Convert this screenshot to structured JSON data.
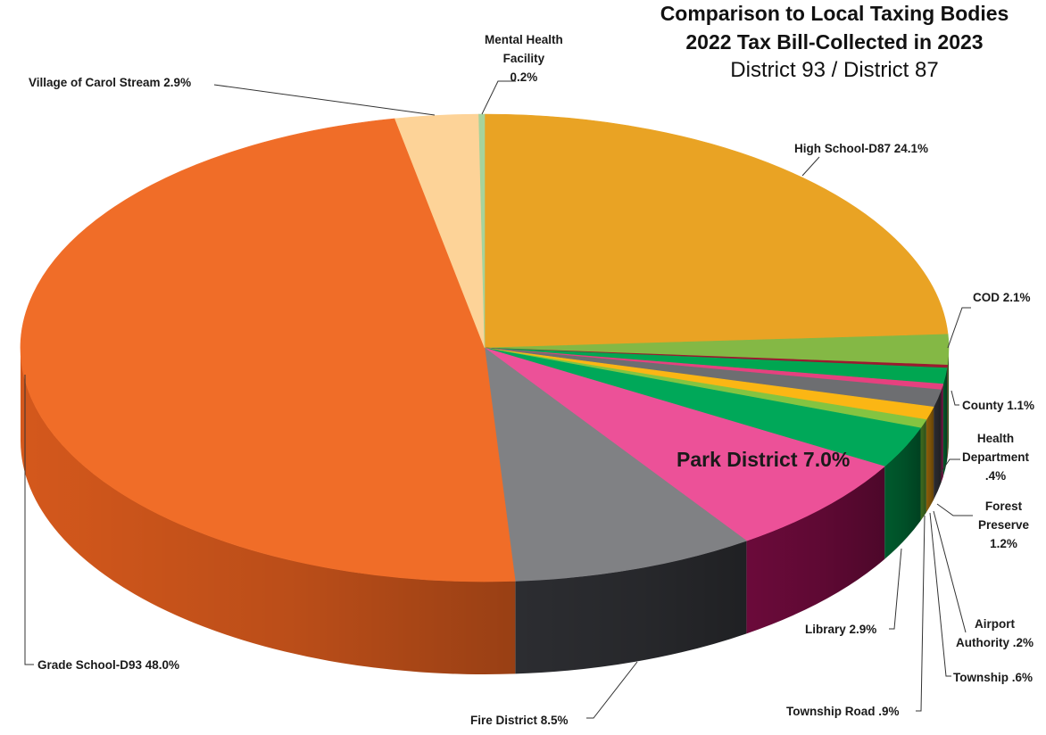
{
  "chart_data": {
    "type": "pie",
    "title": "Comparison to Local Taxing Bodies",
    "subtitle": "2022 Tax Bill-Collected in 2023",
    "subtitle2": "District 93 / District 87",
    "slices": [
      {
        "name": "High School-D87",
        "value": 24.1,
        "color": "#E9A324",
        "side": "#C48418",
        "label_lines": [
          "High School-D87 24.1%"
        ]
      },
      {
        "name": "COD",
        "value": 2.1,
        "color": "#84B845",
        "side": "#3F6A1F",
        "label_lines": [
          "COD 2.1%"
        ]
      },
      {
        "name": "Airport Authority",
        "value": 0.2,
        "color": "#9B1B30",
        "side": "#5A0F1C",
        "label_lines": [
          "Airport",
          "Authority .2%"
        ]
      },
      {
        "name": "County",
        "value": 1.1,
        "color": "#00A651",
        "side": "#00582A",
        "label_lines": [
          "County 1.1%"
        ]
      },
      {
        "name": "Health Department",
        "value": 0.4,
        "color": "#E6417F",
        "side": "#6B0A3A",
        "label_lines": [
          "Health",
          "Department",
          ".4%"
        ]
      },
      {
        "name": "Forest Preserve",
        "value": 1.2,
        "color": "#6D6E71",
        "side": "#2B2B2F",
        "label_lines": [
          "Forest",
          "Preserve",
          "1.2%"
        ]
      },
      {
        "name": "Township Road",
        "value": 0.9,
        "color": "#FBB614",
        "side": "#8A5D0A",
        "label_lines": [
          "Township Road .9%"
        ]
      },
      {
        "name": "Township",
        "value": 0.6,
        "color": "#84C441",
        "side": "#3F6A1F",
        "label_lines": [
          "Township .6%"
        ]
      },
      {
        "name": "Library",
        "value": 2.9,
        "color": "#00A859",
        "side": "#005A2D",
        "label_lines": [
          "Library 2.9%"
        ]
      },
      {
        "name": "Park District",
        "value": 7.0,
        "color": "#EC5198",
        "side": "#6B0A3A",
        "label_lines": [
          "Park District 7.0%"
        ]
      },
      {
        "name": "Fire District",
        "value": 8.5,
        "color": "#808184",
        "side": "#2C2D31",
        "label_lines": [
          "Fire District  8.5%"
        ]
      },
      {
        "name": "Grade School-D93",
        "value": 48.0,
        "color": "#F06D28",
        "side": "#D4581C",
        "label_lines": [
          "Grade School-D93  48.0%"
        ]
      },
      {
        "name": "Village of Carol Stream",
        "value": 2.9,
        "color": "#FDD398",
        "side": "#E2B37B",
        "label_lines": [
          "Village of Carol Stream 2.9%"
        ]
      },
      {
        "name": "Mental Health Facility",
        "value": 0.2,
        "color": "#A6D39C",
        "side": "#6E9E66",
        "label_lines": [
          "Mental Health",
          "Facility",
          "0.2%"
        ]
      }
    ],
    "legend": "none",
    "start_angle_deg": -90,
    "direction": "clockwise"
  }
}
